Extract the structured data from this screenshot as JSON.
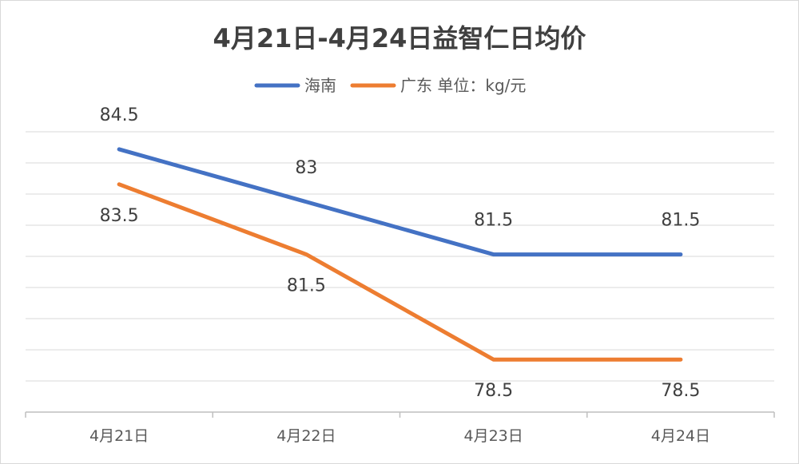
{
  "chart_data": {
    "type": "line",
    "title": "4月21日-4月24日益智仁日均价",
    "categories": [
      "4月21日",
      "4月22日",
      "4月23日",
      "4月24日"
    ],
    "series": [
      {
        "name": "海南",
        "values": [
          84.5,
          83,
          81.5,
          81.5
        ],
        "color": "#4472C4"
      },
      {
        "name": "广东 单位：kg/元",
        "values": [
          83.5,
          81.5,
          78.5,
          78.5
        ],
        "color": "#ED7D31"
      }
    ],
    "ylim": [
      77,
      85
    ],
    "grid": true,
    "legend_position": "top"
  }
}
